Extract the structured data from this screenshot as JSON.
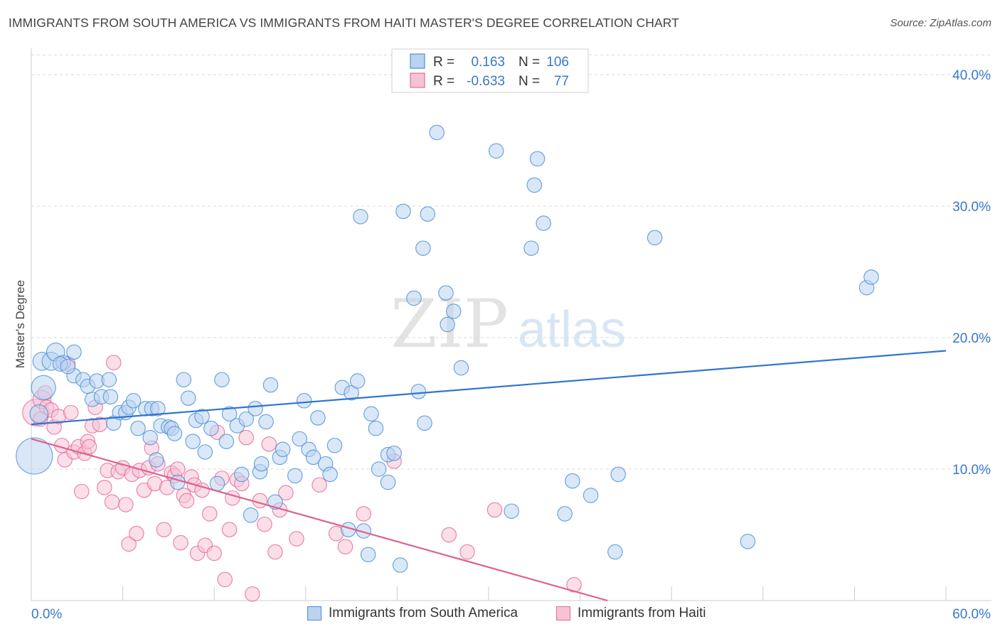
{
  "title": "IMMIGRANTS FROM SOUTH AMERICA VS IMMIGRANTS FROM HAITI MASTER'S DEGREE CORRELATION CHART",
  "source": "Source: ZipAtlas.com",
  "watermark": {
    "zip": "ZIP",
    "atlas": "atlas"
  },
  "colors": {
    "blue": "#4a8fd8",
    "blue_fill": "#b9d3f0",
    "blue_line": "#2f75d0",
    "pink": "#e56a97",
    "pink_fill": "#f6c3d5",
    "pink_line": "#e0608e",
    "axis_label": "#3a78c8",
    "grid": "#d9d9d9"
  },
  "legend": {
    "r_label": "R =",
    "n_label": "N =",
    "rows": [
      {
        "series": "blue",
        "r": "0.163",
        "n": "106"
      },
      {
        "series": "pink",
        "r": "-0.633",
        "n": "77"
      }
    ]
  },
  "bottom_legend": {
    "items": [
      {
        "series": "blue",
        "label": "Immigrants from South America"
      },
      {
        "series": "pink",
        "label": "Immigrants from Haiti"
      }
    ]
  },
  "chart_data": {
    "type": "scatter",
    "ylabel": "Master's Degree",
    "xlim": [
      0,
      60
    ],
    "ylim": [
      0,
      42
    ],
    "x_tick_labels": [
      {
        "value": 0,
        "label": "0.0%"
      },
      {
        "value": 60,
        "label": "60.0%"
      }
    ],
    "y_tick_labels": [
      {
        "value": 10,
        "label": "10.0%"
      },
      {
        "value": 20,
        "label": "20.0%"
      },
      {
        "value": 30,
        "label": "30.0%"
      },
      {
        "value": 40,
        "label": "40.0%"
      }
    ],
    "grid": true,
    "series": [
      {
        "name": "Immigrants from South America",
        "color": "blue",
        "trendline": {
          "x": [
            0,
            60
          ],
          "y": [
            13.4,
            19.0
          ]
        },
        "points": [
          [
            0.2,
            11.0,
            3
          ],
          [
            0.8,
            16.2,
            2
          ],
          [
            0.5,
            14.2,
            1.5
          ],
          [
            0.7,
            18.2,
            1.5
          ],
          [
            1.3,
            18.2,
            1.5
          ],
          [
            1.6,
            18.9,
            1.5
          ],
          [
            2.1,
            18.1,
            1.2
          ],
          [
            2.8,
            18.9,
            1.2
          ],
          [
            2.8,
            17.1,
            1.2
          ],
          [
            3.4,
            16.8,
            1.2
          ],
          [
            3.7,
            16.3,
            1.2
          ],
          [
            4.3,
            16.7,
            1.2
          ],
          [
            5.1,
            16.8,
            1.2
          ],
          [
            4.0,
            15.3,
            1.2
          ],
          [
            4.6,
            15.5,
            1.2
          ],
          [
            5.2,
            15.5,
            1.2
          ],
          [
            5.4,
            13.5,
            1.2
          ],
          [
            5.8,
            14.3,
            1.2
          ],
          [
            6.2,
            14.3,
            1.2
          ],
          [
            6.4,
            14.7,
            1.2
          ],
          [
            6.7,
            15.2,
            1.2
          ],
          [
            7.0,
            13.1,
            1.2
          ],
          [
            7.5,
            14.6,
            1.2
          ],
          [
            7.8,
            12.4,
            1.2
          ],
          [
            7.9,
            14.6,
            1.2
          ],
          [
            8.2,
            10.7,
            1.2
          ],
          [
            8.5,
            13.3,
            1.2
          ],
          [
            9.0,
            13.2,
            1.2
          ],
          [
            9.2,
            13.1,
            1.2
          ],
          [
            9.4,
            12.7,
            1.2
          ],
          [
            9.6,
            9.0,
            1.2
          ],
          [
            10.0,
            16.8,
            1.2
          ],
          [
            10.3,
            15.4,
            1.2
          ],
          [
            10.6,
            12.1,
            1.2
          ],
          [
            10.8,
            13.7,
            1.2
          ],
          [
            11.2,
            14.0,
            1.2
          ],
          [
            11.4,
            11.3,
            1.2
          ],
          [
            11.8,
            13.1,
            1.2
          ],
          [
            12.2,
            8.9,
            1.2
          ],
          [
            12.5,
            16.8,
            1.2
          ],
          [
            12.8,
            12.1,
            1.2
          ],
          [
            13.0,
            14.2,
            1.2
          ],
          [
            13.5,
            13.3,
            1.2
          ],
          [
            13.8,
            9.6,
            1.2
          ],
          [
            14.1,
            13.8,
            1.2
          ],
          [
            14.4,
            6.5,
            1.2
          ],
          [
            14.7,
            14.6,
            1.2
          ],
          [
            15.0,
            9.8,
            1.2
          ],
          [
            15.1,
            10.4,
            1.2
          ],
          [
            15.4,
            13.6,
            1.2
          ],
          [
            15.7,
            16.4,
            1.2
          ],
          [
            16.0,
            7.5,
            1.2
          ],
          [
            16.3,
            10.9,
            1.2
          ],
          [
            16.5,
            11.5,
            1.2
          ],
          [
            17.3,
            9.5,
            1.2
          ],
          [
            17.6,
            12.3,
            1.2
          ],
          [
            17.9,
            15.2,
            1.2
          ],
          [
            18.2,
            11.5,
            1.2
          ],
          [
            18.5,
            10.9,
            1.2
          ],
          [
            18.8,
            13.9,
            1.2
          ],
          [
            19.3,
            10.4,
            1.2
          ],
          [
            19.6,
            9.6,
            1.2
          ],
          [
            19.9,
            11.8,
            1.2
          ],
          [
            20.4,
            16.2,
            1.2
          ],
          [
            20.8,
            5.4,
            1.2
          ],
          [
            21.0,
            15.8,
            1.2
          ],
          [
            21.4,
            16.7,
            1.2
          ],
          [
            21.8,
            5.3,
            1.2
          ],
          [
            22.1,
            3.5,
            1.2
          ],
          [
            22.3,
            14.2,
            1.2
          ],
          [
            22.6,
            13.1,
            1.2
          ],
          [
            22.8,
            10.0,
            1.2
          ],
          [
            23.4,
            9.0,
            1.2
          ],
          [
            23.4,
            11.1,
            1.2
          ],
          [
            23.8,
            11.2,
            1.2
          ],
          [
            24.2,
            2.7,
            1.2
          ],
          [
            25.1,
            23.0,
            1.2
          ],
          [
            25.4,
            15.9,
            1.2
          ],
          [
            25.8,
            13.5,
            1.2
          ],
          [
            26.6,
            35.6,
            1.2
          ],
          [
            27.3,
            21.0,
            1.2
          ],
          [
            27.7,
            22.0,
            1.2
          ],
          [
            28.2,
            17.7,
            1.2
          ],
          [
            30.5,
            34.2,
            1.2
          ],
          [
            31.5,
            6.8,
            1.2
          ],
          [
            32.8,
            26.8,
            1.2
          ],
          [
            33.0,
            31.6,
            1.2
          ],
          [
            33.2,
            33.6,
            1.2
          ],
          [
            33.6,
            28.7,
            1.2
          ],
          [
            35.0,
            6.6,
            1.2
          ],
          [
            35.5,
            9.1,
            1.2
          ],
          [
            36.7,
            8.0,
            1.2
          ],
          [
            38.3,
            3.7,
            1.2
          ],
          [
            38.5,
            9.6,
            1.2
          ],
          [
            40.9,
            27.6,
            1.2
          ],
          [
            47.0,
            4.5,
            1.2
          ],
          [
            54.8,
            23.8,
            1.2
          ],
          [
            55.1,
            24.6,
            1.2
          ],
          [
            27.2,
            23.4,
            1.2
          ],
          [
            26.0,
            29.4,
            1.2
          ],
          [
            24.4,
            29.6,
            1.2
          ],
          [
            25.7,
            26.8,
            1.2
          ],
          [
            21.6,
            29.2,
            1.2
          ],
          [
            1.9,
            18.0,
            1.2
          ],
          [
            2.4,
            17.8,
            1.2
          ],
          [
            8.3,
            14.6,
            1.2
          ]
        ]
      },
      {
        "name": "Immigrants from Haiti",
        "color": "pink",
        "trendline": {
          "x": [
            0,
            37.8
          ],
          "y": [
            12.3,
            0
          ]
        },
        "points": [
          [
            0.3,
            14.3,
            2.2
          ],
          [
            0.7,
            15.3,
            1.5
          ],
          [
            0.9,
            15.8,
            1.2
          ],
          [
            1.0,
            14.7,
            1.2
          ],
          [
            0.6,
            13.8,
            1.2
          ],
          [
            1.3,
            14.5,
            1.2
          ],
          [
            1.5,
            13.2,
            1.2
          ],
          [
            1.8,
            14.0,
            1.2
          ],
          [
            2.0,
            11.8,
            1.2
          ],
          [
            2.2,
            10.7,
            1.2
          ],
          [
            2.4,
            18.0,
            1.2
          ],
          [
            2.6,
            14.3,
            1.2
          ],
          [
            2.8,
            11.3,
            1.2
          ],
          [
            3.1,
            11.7,
            1.2
          ],
          [
            3.3,
            8.3,
            1.2
          ],
          [
            3.5,
            11.2,
            1.2
          ],
          [
            3.7,
            12.1,
            1.2
          ],
          [
            3.8,
            11.7,
            1.2
          ],
          [
            4.0,
            13.3,
            1.2
          ],
          [
            4.2,
            14.7,
            1.2
          ],
          [
            4.5,
            13.4,
            1.2
          ],
          [
            4.8,
            8.6,
            1.2
          ],
          [
            5.0,
            9.9,
            1.2
          ],
          [
            5.3,
            7.5,
            1.2
          ],
          [
            5.4,
            18.1,
            1.2
          ],
          [
            5.7,
            9.8,
            1.2
          ],
          [
            6.0,
            10.1,
            1.2
          ],
          [
            6.2,
            7.3,
            1.2
          ],
          [
            6.4,
            4.3,
            1.2
          ],
          [
            6.6,
            9.6,
            1.2
          ],
          [
            6.9,
            5.1,
            1.2
          ],
          [
            7.1,
            9.9,
            1.2
          ],
          [
            7.4,
            8.4,
            1.2
          ],
          [
            7.7,
            10.1,
            1.2
          ],
          [
            7.9,
            11.6,
            1.2
          ],
          [
            8.1,
            8.9,
            1.2
          ],
          [
            8.3,
            10.4,
            1.2
          ],
          [
            8.7,
            5.4,
            1.2
          ],
          [
            8.9,
            8.6,
            1.2
          ],
          [
            9.2,
            9.7,
            1.2
          ],
          [
            9.4,
            9.5,
            1.2
          ],
          [
            9.6,
            10.0,
            1.2
          ],
          [
            9.8,
            4.4,
            1.2
          ],
          [
            10.0,
            8.0,
            1.2
          ],
          [
            10.2,
            7.6,
            1.2
          ],
          [
            10.5,
            9.4,
            1.2
          ],
          [
            10.7,
            8.8,
            1.2
          ],
          [
            10.9,
            3.6,
            1.2
          ],
          [
            11.2,
            8.4,
            1.2
          ],
          [
            11.4,
            4.2,
            1.2
          ],
          [
            11.7,
            6.6,
            1.2
          ],
          [
            12.0,
            3.6,
            1.2
          ],
          [
            12.2,
            12.8,
            1.2
          ],
          [
            12.5,
            9.3,
            1.2
          ],
          [
            12.7,
            1.6,
            1.2
          ],
          [
            13.0,
            5.4,
            1.2
          ],
          [
            13.2,
            7.8,
            1.2
          ],
          [
            13.5,
            9.2,
            1.2
          ],
          [
            13.8,
            8.9,
            1.2
          ],
          [
            14.1,
            12.4,
            1.2
          ],
          [
            14.5,
            0.5,
            1.2
          ],
          [
            15.0,
            7.6,
            1.2
          ],
          [
            15.3,
            5.8,
            1.2
          ],
          [
            15.6,
            11.9,
            1.2
          ],
          [
            16.0,
            3.7,
            1.2
          ],
          [
            16.3,
            6.9,
            1.2
          ],
          [
            16.7,
            8.2,
            1.2
          ],
          [
            17.4,
            4.7,
            1.2
          ],
          [
            18.9,
            8.8,
            1.2
          ],
          [
            20.0,
            5.1,
            1.2
          ],
          [
            20.6,
            4.1,
            1.2
          ],
          [
            21.8,
            6.6,
            1.2
          ],
          [
            23.8,
            10.6,
            1.2
          ],
          [
            27.4,
            5.0,
            1.2
          ],
          [
            28.6,
            3.7,
            1.2
          ],
          [
            30.4,
            6.9,
            1.2
          ],
          [
            35.6,
            1.2,
            1.2
          ]
        ]
      }
    ]
  }
}
